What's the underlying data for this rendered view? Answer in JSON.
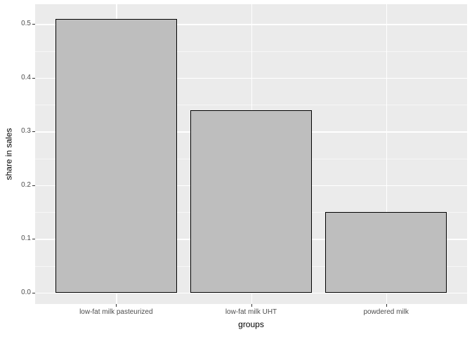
{
  "chart_data": {
    "type": "bar",
    "title": "",
    "xlabel": "groups",
    "ylabel": "share in sales",
    "categories": [
      "low-fat milk pasteurized",
      "low-fat milk UHT",
      "powdered milk"
    ],
    "values": [
      0.51,
      0.34,
      0.15
    ],
    "ylim": [
      -0.021,
      0.537
    ],
    "yticks": [
      0.0,
      0.1,
      0.2,
      0.3,
      0.4,
      0.5
    ],
    "ytick_labels": [
      "0.0",
      "0.1",
      "0.2",
      "0.3",
      "0.4",
      "0.5"
    ],
    "minor_yticks": [
      0.05,
      0.15,
      0.25,
      0.35,
      0.45
    ],
    "bar_width_fraction": 0.9,
    "grid": true,
    "legend_position": "none",
    "colors": {
      "background": "#FFFFFF",
      "panel_bg": "#EBEBEB",
      "grid_major": "#FFFFFF",
      "grid_minor": "#FFFFFF",
      "bar_fill": "#BEBEBE",
      "bar_stroke": "#000000",
      "tick_text": "#4D4D4D",
      "tick_mark": "#333333",
      "axis_title": "#000000"
    }
  }
}
